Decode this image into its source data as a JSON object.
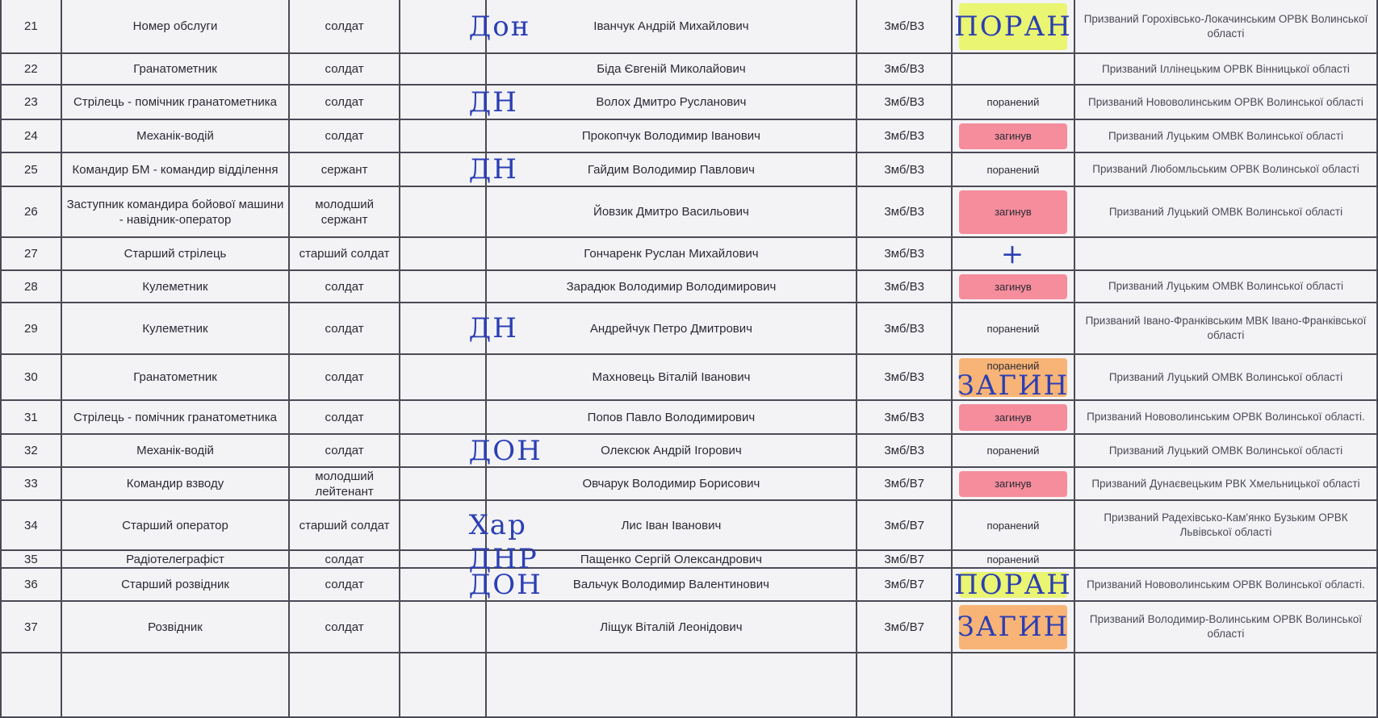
{
  "rows": [
    {
      "n": "21",
      "pos": "Номер обслуги",
      "rank": "солдат",
      "mark": "Дон",
      "name": "Іванчук Андрій Михайлович",
      "unit": "3мб/В3",
      "status": "",
      "hl": "yellow",
      "hw": "ПОРАН",
      "note": "Призваний Горохівсько-Локачинським ОРВК  Волинської області",
      "h": 67
    },
    {
      "n": "22",
      "pos": "Гранатометник",
      "rank": "солдат",
      "mark": "",
      "name": "Біда Євгеній Миколайович",
      "unit": "3мб/В3",
      "status": "",
      "hl": "",
      "hw": "",
      "note": "Призваний Іллінецьким ОРВК Вінницької області",
      "h": 39
    },
    {
      "n": "23",
      "pos": "Стрілець - помічник гранатометника",
      "rank": "солдат",
      "mark": "ДН",
      "name": "Волох Дмитро Русланович",
      "unit": "3мб/В3",
      "status": "поранений",
      "hl": "",
      "hw": "",
      "note": "Призваний Нововолинським ОРВК Волинської області",
      "h": 43
    },
    {
      "n": "24",
      "pos": "Механік-водій",
      "rank": "солдат",
      "mark": "",
      "name": "Прокопчук Володимир Іванович",
      "unit": "3мб/В3",
      "status": "загинув",
      "hl": "pink",
      "hw": "",
      "note": "Призваний Луцьким ОМВК Волинської області",
      "h": 41
    },
    {
      "n": "25",
      "pos": "Командир БМ - командир відділення",
      "rank": "сержант",
      "mark": "ДН",
      "name": "Гайдим Володимир Павлович",
      "unit": "3мб/В3",
      "status": "поранений",
      "hl": "",
      "hw": "",
      "note": "Призваний Любомльським ОРВК Волинської області",
      "h": 42
    },
    {
      "n": "26",
      "pos": "Заступник командира бойової машини - навідник-оператор",
      "rank": "молодший сержант",
      "mark": "",
      "name": "Йовзик Дмитро Васильович",
      "unit": "3мб/В3",
      "status": "загинув",
      "hl": "pink",
      "hw": "",
      "note": "Призваний Луцький ОМВК Волинської області",
      "h": 63
    },
    {
      "n": "27",
      "pos": "Старший стрілець",
      "rank": "старший солдат",
      "mark": "",
      "name": "Гончаренк Руслан Михайлович",
      "unit": "3мб/В3",
      "status": "",
      "hl": "",
      "hw": "+",
      "note": "",
      "h": 41
    },
    {
      "n": "28",
      "pos": "Кулеметник",
      "rank": "солдат",
      "mark": "",
      "name": "Зарадюк Володимир Володимирович",
      "unit": "3мб/В3",
      "status": "загинув",
      "hl": "pink",
      "hw": "",
      "note": "Призваний Луцьким ОМВК Волинської області",
      "h": 40
    },
    {
      "n": "29",
      "pos": "Кулеметник",
      "rank": "солдат",
      "mark": "ДН",
      "name": "Андрейчук Петро Дмитрович",
      "unit": "3мб/В3",
      "status": "поранений",
      "hl": "",
      "hw": "",
      "note": "Призваний Івано-Франківським МВК  Івано-Франківської області",
      "h": 64
    },
    {
      "n": "30",
      "pos": "Гранатометник",
      "rank": "солдат",
      "mark": "",
      "name": "Махновець Віталій Іванович",
      "unit": "3мб/В3",
      "status": "поранений",
      "hl": "orange",
      "hw": "ЗАГИН",
      "note": "Призваний Луцький ОМВК Волинської області",
      "h": 41
    },
    {
      "n": "31",
      "pos": "Стрілець - помічник гранатометника",
      "rank": "солдат",
      "mark": "",
      "name": "Попов Павло Володимирович",
      "unit": "3мб/В3",
      "status": "загинув",
      "hl": "pink",
      "hw": "",
      "note": "Призваний Нововолинським ОРВК Волинської області.",
      "h": 42
    },
    {
      "n": "32",
      "pos": "Механік-водій",
      "rank": "солдат",
      "mark": "ДОН",
      "name": "Олексюк Андрій Ігорович",
      "unit": "3мб/В3",
      "status": "поранений",
      "hl": "",
      "hw": "",
      "note": "Призваний Луцький ОМВК Волинської області",
      "h": 41
    },
    {
      "n": "33",
      "pos": "Командир взводу",
      "rank": "молодший лейтенант",
      "mark": "",
      "name": "Овчарук Володимир Борисович",
      "unit": "3мб/В7",
      "status": "загинув",
      "hl": "pink",
      "hw": "",
      "note": "Призваний Дунаєвецьким РВК Хмельницької області",
      "h": 41
    },
    {
      "n": "34",
      "pos": "Старший оператор",
      "rank": "старший солдат",
      "mark": "Хар",
      "name": "Лис Іван Іванович",
      "unit": "3мб/В7",
      "status": "поранений",
      "hl": "",
      "hw": "",
      "note": "Призваний Радехівсько-Кам'янко Бузьким ОРВК Львівської області",
      "h": 62
    },
    {
      "n": "35",
      "pos": "Радіотелеграфіст",
      "rank": "солдат",
      "mark": "ДНР",
      "name": "Пащенко Сергій Олександрович",
      "unit": "3мб/В7",
      "status": "поранений",
      "hl": "",
      "hw": "",
      "note": "",
      "h": 22
    },
    {
      "n": "36",
      "pos": "Старший розвідник",
      "rank": "солдат",
      "mark": "ДОН",
      "name": "Вальчук Володимир Валентинович",
      "unit": "3мб/В7",
      "status": "",
      "hl": "yellow",
      "hw": "ПОРАН",
      "note": "Призваний Нововолинським ОРВК  Волинської області.",
      "h": 41
    },
    {
      "n": "37",
      "pos": "Розвідник",
      "rank": "солдат",
      "mark": "",
      "name": "Ліщук Віталій Леонідович",
      "unit": "3мб/В7",
      "status": "",
      "hl": "orange",
      "hw": "ЗАГИН",
      "note": "Призваний Володимир-Волинським ОРВК  Волинської області",
      "h": 64
    },
    {
      "n": "",
      "pos": "",
      "rank": "",
      "mark": "",
      "name": "",
      "unit": "",
      "status": "",
      "hl": "",
      "hw": "",
      "note": "",
      "h": 80
    }
  ]
}
